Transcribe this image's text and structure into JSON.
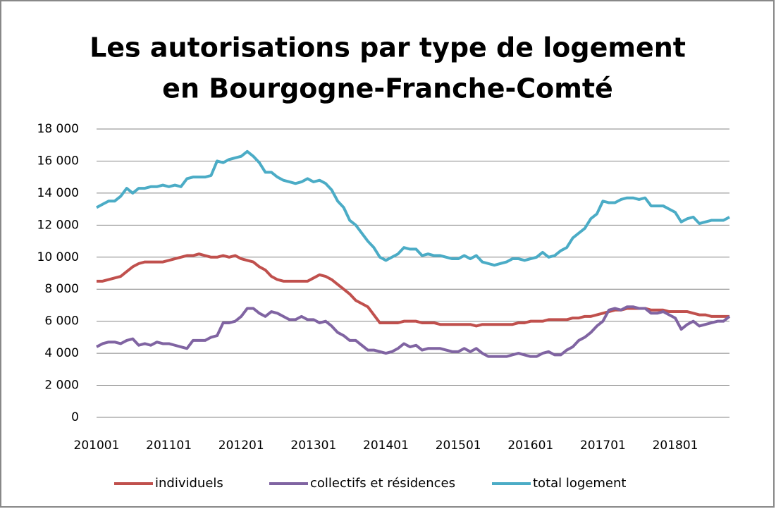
{
  "chart_data": {
    "type": "line",
    "title": [
      "Les autorisations par type de logement",
      "en Bourgogne-Franche-Comté"
    ],
    "categories": [
      "201001",
      null,
      null,
      null,
      null,
      null,
      null,
      null,
      null,
      null,
      null,
      null,
      "201101",
      null,
      null,
      null,
      null,
      null,
      null,
      null,
      null,
      null,
      null,
      null,
      "201201",
      null,
      null,
      null,
      null,
      null,
      null,
      null,
      null,
      null,
      null,
      null,
      "201301",
      null,
      null,
      null,
      null,
      null,
      null,
      null,
      null,
      null,
      null,
      null,
      "201401",
      null,
      null,
      null,
      null,
      null,
      null,
      null,
      null,
      null,
      null,
      null,
      "201501",
      null,
      null,
      null,
      null,
      null,
      null,
      null,
      null,
      null,
      null,
      null,
      "201601",
      null,
      null,
      null,
      null,
      null,
      null,
      null,
      null,
      null,
      null,
      null,
      "201701",
      null,
      null,
      null,
      null,
      null,
      null,
      null,
      null,
      null,
      null,
      null,
      "201801",
      null,
      null,
      null,
      null,
      null,
      null,
      null,
      null,
      null
    ],
    "series": [
      {
        "name": "individuels",
        "color": "#c0504d",
        "values": [
          8500,
          8500,
          8600,
          8700,
          8800,
          9100,
          9400,
          9600,
          9700,
          9700,
          9700,
          9700,
          9800,
          9900,
          10000,
          10100,
          10100,
          10200,
          10100,
          10000,
          10000,
          10100,
          10000,
          10100,
          9900,
          9800,
          9700,
          9400,
          9200,
          8800,
          8600,
          8500,
          8500,
          8500,
          8500,
          8500,
          8700,
          8900,
          8800,
          8600,
          8300,
          8000,
          7700,
          7300,
          7100,
          6900,
          6400,
          5900,
          5900,
          5900,
          5900,
          6000,
          6000,
          6000,
          5900,
          5900,
          5900,
          5800,
          5800,
          5800,
          5800,
          5800,
          5800,
          5700,
          5800,
          5800,
          5800,
          5800,
          5800,
          5800,
          5900,
          5900,
          6000,
          6000,
          6000,
          6100,
          6100,
          6100,
          6100,
          6200,
          6200,
          6300,
          6300,
          6400,
          6500,
          6600,
          6700,
          6700,
          6800,
          6800,
          6800,
          6800,
          6700,
          6700,
          6700,
          6600,
          6600,
          6600,
          6600,
          6500,
          6400,
          6400,
          6300,
          6300,
          6300,
          6300
        ]
      },
      {
        "name": "collectifs et résidences",
        "color": "#8064a2",
        "values": [
          4400,
          4600,
          4700,
          4700,
          4600,
          4800,
          4900,
          4500,
          4600,
          4500,
          4700,
          4600,
          4600,
          4500,
          4400,
          4300,
          4800,
          4800,
          4800,
          5000,
          5100,
          5900,
          5900,
          6000,
          6300,
          6800,
          6800,
          6500,
          6300,
          6600,
          6500,
          6300,
          6100,
          6100,
          6300,
          6100,
          6100,
          5900,
          6000,
          5700,
          5300,
          5100,
          4800,
          4800,
          4500,
          4200,
          4200,
          4100,
          4000,
          4100,
          4300,
          4600,
          4400,
          4500,
          4200,
          4300,
          4300,
          4300,
          4200,
          4100,
          4100,
          4300,
          4100,
          4300,
          4000,
          3800,
          3800,
          3800,
          3800,
          3900,
          4000,
          3900,
          3800,
          3800,
          4000,
          4100,
          3900,
          3900,
          4200,
          4400,
          4800,
          5000,
          5300,
          5700,
          6000,
          6700,
          6800,
          6700,
          6900,
          6900,
          6800,
          6800,
          6500,
          6500,
          6600,
          6400,
          6200,
          5500,
          5800,
          6000,
          5700,
          5800,
          5900,
          6000,
          6000,
          6300
        ]
      },
      {
        "name": "total logement",
        "color": "#4bacc6",
        "values": [
          13100,
          13300,
          13500,
          13500,
          13800,
          14300,
          14000,
          14300,
          14300,
          14400,
          14400,
          14500,
          14400,
          14500,
          14400,
          14900,
          15000,
          15000,
          15000,
          15100,
          16000,
          15900,
          16100,
          16200,
          16300,
          16600,
          16300,
          15900,
          15300,
          15300,
          15000,
          14800,
          14700,
          14600,
          14700,
          14900,
          14700,
          14800,
          14600,
          14200,
          13500,
          13100,
          12300,
          12000,
          11500,
          11000,
          10600,
          10000,
          9800,
          10000,
          10200,
          10600,
          10500,
          10500,
          10100,
          10200,
          10100,
          10100,
          10000,
          9900,
          9900,
          10100,
          9900,
          10100,
          9700,
          9600,
          9500,
          9600,
          9700,
          9900,
          9900,
          9800,
          9900,
          10000,
          10300,
          10000,
          10100,
          10400,
          10600,
          11200,
          11500,
          11800,
          12400,
          12700,
          13500,
          13400,
          13400,
          13600,
          13700,
          13700,
          13600,
          13700,
          13200,
          13200,
          13200,
          13000,
          12800,
          12200,
          12400,
          12500,
          12100,
          12200,
          12300,
          12300,
          12300,
          12500
        ]
      }
    ],
    "ylim": [
      0,
      18000
    ],
    "yticks": [
      0,
      {
        "value": 2000,
        "label": "2 000"
      },
      {
        "value": 4000,
        "label": "4 000"
      },
      {
        "value": 6000,
        "label": "6 000"
      },
      {
        "value": 8000,
        "label": "8 000"
      },
      {
        "value": 10000,
        "label": "10 000"
      },
      {
        "value": 12000,
        "label": "12 000"
      },
      {
        "value": 14000,
        "label": "14 000"
      },
      {
        "value": 16000,
        "label": "16 000"
      },
      {
        "value": 18000,
        "label": "18 000"
      }
    ],
    "grid": true,
    "legend": "bottom"
  }
}
